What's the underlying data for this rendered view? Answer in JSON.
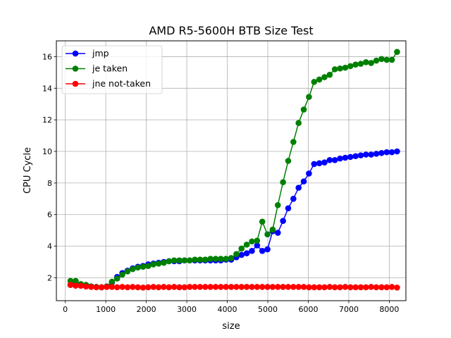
{
  "chart_data": {
    "type": "line",
    "title": "AMD R5-5600H BTB Size Test",
    "xlabel": "size",
    "ylabel": "CPU Cycle",
    "xlim": [
      -220,
      8410
    ],
    "ylim": [
      0.55,
      17.0
    ],
    "xticks": [
      0,
      1000,
      2000,
      3000,
      4000,
      5000,
      6000,
      7000,
      8000
    ],
    "yticks": [
      2,
      4,
      6,
      8,
      10,
      12,
      14,
      16
    ],
    "grid": true,
    "legend_position": "upper-left",
    "x": [
      128,
      256,
      384,
      512,
      640,
      768,
      896,
      1024,
      1152,
      1280,
      1408,
      1536,
      1664,
      1792,
      1920,
      2048,
      2176,
      2304,
      2432,
      2560,
      2688,
      2816,
      2944,
      3072,
      3200,
      3328,
      3456,
      3584,
      3712,
      3840,
      3968,
      4096,
      4224,
      4352,
      4480,
      4608,
      4736,
      4864,
      4992,
      5120,
      5248,
      5376,
      5504,
      5632,
      5760,
      5888,
      6016,
      6144,
      6272,
      6400,
      6528,
      6656,
      6784,
      6912,
      7040,
      7168,
      7296,
      7424,
      7552,
      7680,
      7808,
      7936,
      8064,
      8192
    ],
    "series": [
      {
        "name": "jmp",
        "color": "#0000ff",
        "values": [
          1.55,
          1.6,
          1.5,
          1.5,
          1.45,
          1.42,
          1.4,
          1.45,
          1.7,
          2.05,
          2.3,
          2.45,
          2.6,
          2.7,
          2.75,
          2.85,
          2.9,
          2.95,
          3.0,
          3.05,
          3.05,
          3.05,
          3.1,
          3.1,
          3.1,
          3.1,
          3.1,
          3.1,
          3.1,
          3.1,
          3.15,
          3.15,
          3.3,
          3.45,
          3.55,
          3.7,
          4.05,
          3.7,
          3.8,
          4.95,
          4.85,
          5.6,
          6.4,
          7.0,
          7.7,
          8.1,
          8.6,
          9.2,
          9.25,
          9.3,
          9.45,
          9.45,
          9.55,
          9.6,
          9.65,
          9.7,
          9.75,
          9.8,
          9.8,
          9.85,
          9.9,
          9.95,
          9.95,
          10.0
        ]
      },
      {
        "name": "je taken",
        "color": "#008000",
        "values": [
          1.8,
          1.8,
          1.6,
          1.55,
          1.45,
          1.42,
          1.4,
          1.45,
          1.75,
          1.95,
          2.2,
          2.4,
          2.55,
          2.65,
          2.7,
          2.75,
          2.85,
          2.9,
          2.95,
          3.05,
          3.1,
          3.1,
          3.1,
          3.1,
          3.15,
          3.15,
          3.15,
          3.2,
          3.2,
          3.2,
          3.2,
          3.25,
          3.5,
          3.85,
          4.1,
          4.3,
          4.35,
          5.55,
          4.75,
          5.05,
          6.6,
          8.05,
          9.4,
          10.6,
          11.8,
          12.65,
          13.45,
          14.4,
          14.55,
          14.7,
          14.85,
          15.2,
          15.25,
          15.3,
          15.4,
          15.5,
          15.55,
          15.65,
          15.6,
          15.75,
          15.85,
          15.8,
          15.8,
          16.3
        ]
      },
      {
        "name": "jne not-taken",
        "color": "#ff0000",
        "values": [
          1.55,
          1.5,
          1.5,
          1.45,
          1.42,
          1.4,
          1.4,
          1.42,
          1.42,
          1.4,
          1.42,
          1.4,
          1.42,
          1.4,
          1.38,
          1.4,
          1.42,
          1.4,
          1.42,
          1.4,
          1.42,
          1.4,
          1.4,
          1.42,
          1.42,
          1.42,
          1.42,
          1.42,
          1.42,
          1.42,
          1.42,
          1.42,
          1.42,
          1.42,
          1.42,
          1.42,
          1.42,
          1.42,
          1.42,
          1.42,
          1.42,
          1.42,
          1.42,
          1.42,
          1.42,
          1.42,
          1.4,
          1.4,
          1.4,
          1.4,
          1.42,
          1.4,
          1.4,
          1.42,
          1.4,
          1.4,
          1.4,
          1.4,
          1.42,
          1.4,
          1.4,
          1.4,
          1.42,
          1.38
        ]
      }
    ]
  }
}
